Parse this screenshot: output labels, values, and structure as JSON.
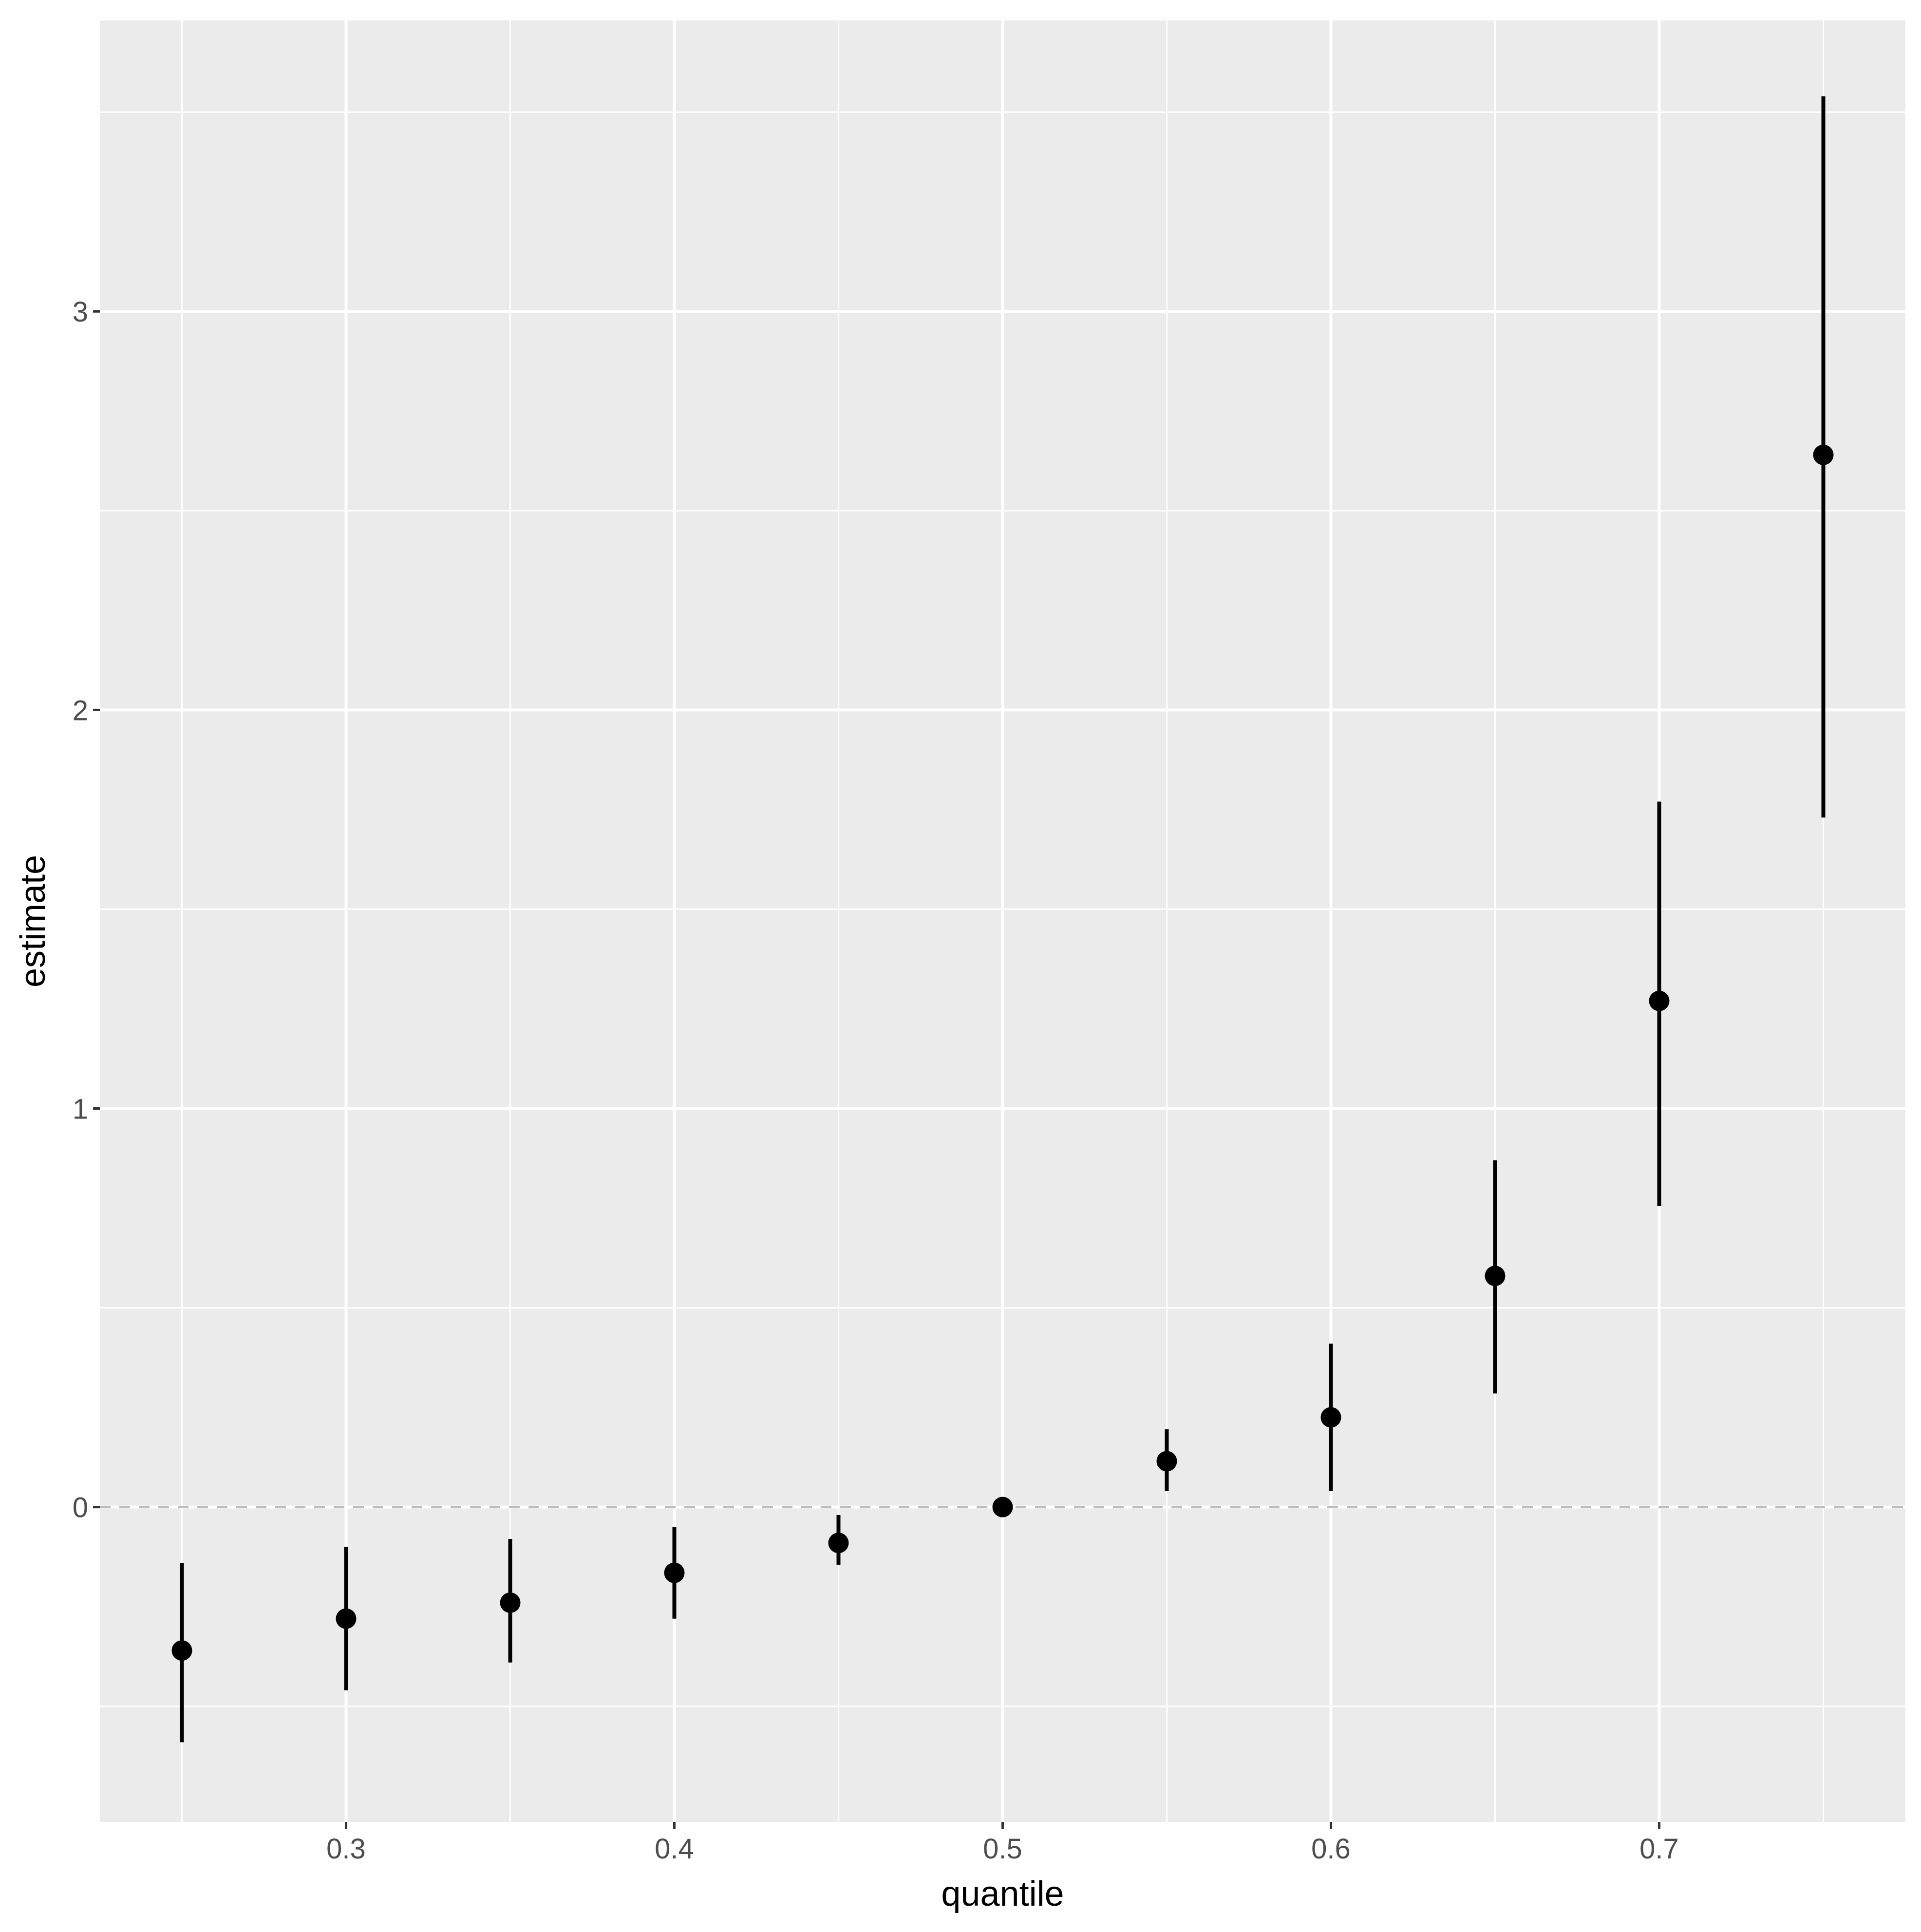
{
  "chart_data": {
    "type": "scatter",
    "xlabel": "quantile",
    "ylabel": "estimate",
    "xlim": [
      0.225,
      0.775
    ],
    "ylim": [
      -0.79,
      3.73
    ],
    "xticks": [
      0.3,
      0.4,
      0.5,
      0.6,
      0.7
    ],
    "xtick_labels": [
      "0.3",
      "0.4",
      "0.5",
      "0.6",
      "0.7"
    ],
    "yticks": [
      0,
      1,
      2,
      3
    ],
    "ytick_labels": [
      "0",
      "1",
      "2",
      "3"
    ],
    "grid": true,
    "reference_line": {
      "y": 0,
      "style": "dashed"
    },
    "points": [
      {
        "x": 0.25,
        "y": -0.36,
        "lower": -0.59,
        "upper": -0.14
      },
      {
        "x": 0.3,
        "y": -0.28,
        "lower": -0.46,
        "upper": -0.1
      },
      {
        "x": 0.35,
        "y": -0.24,
        "lower": -0.39,
        "upper": -0.08
      },
      {
        "x": 0.4,
        "y": -0.165,
        "lower": -0.28,
        "upper": -0.05
      },
      {
        "x": 0.45,
        "y": -0.09,
        "lower": -0.145,
        "upper": -0.02
      },
      {
        "x": 0.5,
        "y": 0.0,
        "lower": 0.0,
        "upper": 0.0
      },
      {
        "x": 0.55,
        "y": 0.115,
        "lower": 0.04,
        "upper": 0.195
      },
      {
        "x": 0.6,
        "y": 0.225,
        "lower": 0.04,
        "upper": 0.41
      },
      {
        "x": 0.65,
        "y": 0.58,
        "lower": 0.285,
        "upper": 0.87
      },
      {
        "x": 0.7,
        "y": 1.27,
        "lower": 0.755,
        "upper": 1.77
      },
      {
        "x": 0.75,
        "y": 2.64,
        "lower": 1.73,
        "upper": 3.54
      }
    ]
  }
}
